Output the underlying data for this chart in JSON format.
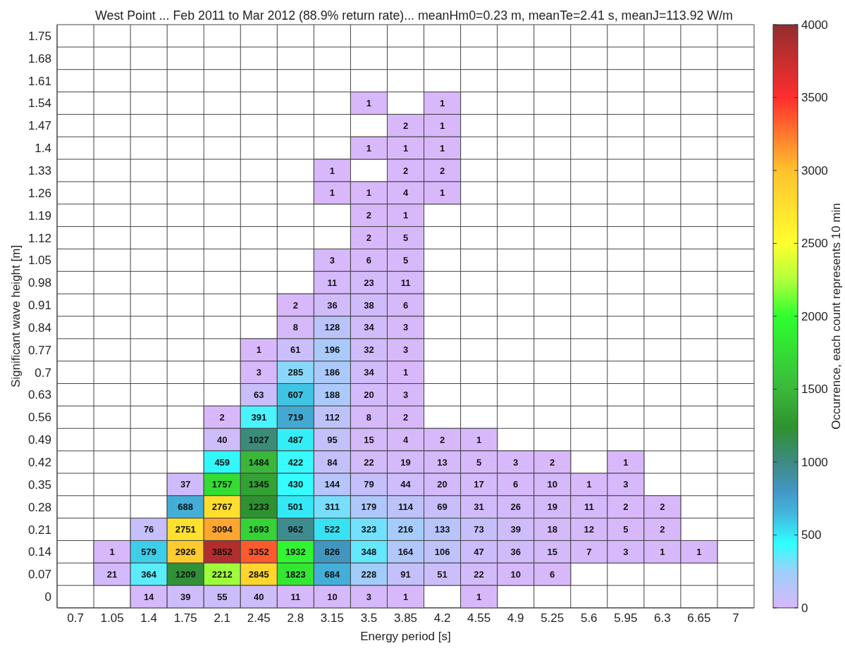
{
  "chart_data": {
    "type": "heatmap",
    "title": "West Point ... Feb 2011 to Mar 2012 (88.9% return rate)... meanHm0=0.23 m, meanTe=2.41 s, meanJ=113.92 W/m",
    "xlabel": "Energy period [s]",
    "ylabel": "Significant wave height [m]",
    "clabel": "Occurrence, each count represents 10 min",
    "categories": [
      "0.7",
      "1.05",
      "1.4",
      "1.75",
      "2.1",
      "2.45",
      "2.8",
      "3.15",
      "3.5",
      "3.85",
      "4.2",
      "4.55",
      "4.9",
      "5.25",
      "5.6",
      "5.95",
      "6.3",
      "6.65",
      "7"
    ],
    "y_categories": [
      "1.75",
      "1.68",
      "1.61",
      "1.54",
      "1.47",
      "1.4",
      "1.33",
      "1.26",
      "1.19",
      "1.12",
      "1.05",
      "0.98",
      "0.91",
      "0.84",
      "0.77",
      "0.7",
      "0.63",
      "0.56",
      "0.49",
      "0.42",
      "0.35",
      "0.28",
      "0.21",
      "0.14",
      "0.07",
      "0"
    ],
    "cells": [
      [
        null,
        null,
        null,
        null,
        null,
        null,
        null,
        null,
        null,
        null,
        null,
        null,
        null,
        null,
        null,
        null,
        null,
        null,
        null
      ],
      [
        null,
        null,
        null,
        null,
        null,
        null,
        null,
        null,
        null,
        null,
        null,
        null,
        null,
        null,
        null,
        null,
        null,
        null,
        null
      ],
      [
        null,
        null,
        null,
        null,
        null,
        null,
        null,
        null,
        null,
        null,
        null,
        null,
        null,
        null,
        null,
        null,
        null,
        null,
        null
      ],
      [
        null,
        null,
        null,
        null,
        null,
        null,
        null,
        null,
        1,
        null,
        1,
        null,
        null,
        null,
        null,
        null,
        null,
        null,
        null
      ],
      [
        null,
        null,
        null,
        null,
        null,
        null,
        null,
        null,
        null,
        2,
        1,
        null,
        null,
        null,
        null,
        null,
        null,
        null,
        null
      ],
      [
        null,
        null,
        null,
        null,
        null,
        null,
        null,
        null,
        1,
        1,
        1,
        null,
        null,
        null,
        null,
        null,
        null,
        null,
        null
      ],
      [
        null,
        null,
        null,
        null,
        null,
        null,
        null,
        1,
        null,
        2,
        2,
        null,
        null,
        null,
        null,
        null,
        null,
        null,
        null
      ],
      [
        null,
        null,
        null,
        null,
        null,
        null,
        null,
        1,
        1,
        4,
        1,
        null,
        null,
        null,
        null,
        null,
        null,
        null,
        null
      ],
      [
        null,
        null,
        null,
        null,
        null,
        null,
        null,
        null,
        2,
        1,
        null,
        null,
        null,
        null,
        null,
        null,
        null,
        null,
        null
      ],
      [
        null,
        null,
        null,
        null,
        null,
        null,
        null,
        null,
        2,
        5,
        null,
        null,
        null,
        null,
        null,
        null,
        null,
        null,
        null
      ],
      [
        null,
        null,
        null,
        null,
        null,
        null,
        null,
        3,
        6,
        5,
        null,
        null,
        null,
        null,
        null,
        null,
        null,
        null,
        null
      ],
      [
        null,
        null,
        null,
        null,
        null,
        null,
        null,
        11,
        23,
        11,
        null,
        null,
        null,
        null,
        null,
        null,
        null,
        null,
        null
      ],
      [
        null,
        null,
        null,
        null,
        null,
        null,
        2,
        36,
        38,
        6,
        null,
        null,
        null,
        null,
        null,
        null,
        null,
        null,
        null
      ],
      [
        null,
        null,
        null,
        null,
        null,
        null,
        8,
        128,
        34,
        3,
        null,
        null,
        null,
        null,
        null,
        null,
        null,
        null,
        null
      ],
      [
        null,
        null,
        null,
        null,
        null,
        1,
        61,
        196,
        32,
        3,
        null,
        null,
        null,
        null,
        null,
        null,
        null,
        null,
        null
      ],
      [
        null,
        null,
        null,
        null,
        null,
        3,
        285,
        186,
        34,
        1,
        null,
        null,
        null,
        null,
        null,
        null,
        null,
        null,
        null
      ],
      [
        null,
        null,
        null,
        null,
        null,
        63,
        607,
        188,
        20,
        3,
        null,
        null,
        null,
        null,
        null,
        null,
        null,
        null,
        null
      ],
      [
        null,
        null,
        null,
        null,
        2,
        391,
        719,
        112,
        8,
        2,
        null,
        null,
        null,
        null,
        null,
        null,
        null,
        null,
        null
      ],
      [
        null,
        null,
        null,
        null,
        40,
        1027,
        487,
        95,
        15,
        4,
        2,
        1,
        null,
        null,
        null,
        null,
        null,
        null,
        null
      ],
      [
        null,
        null,
        null,
        null,
        459,
        1484,
        422,
        84,
        22,
        19,
        13,
        5,
        3,
        2,
        null,
        1,
        null,
        null,
        null
      ],
      [
        null,
        null,
        null,
        37,
        1757,
        1345,
        430,
        144,
        79,
        44,
        20,
        17,
        6,
        10,
        1,
        3,
        null,
        null,
        null
      ],
      [
        null,
        null,
        null,
        688,
        2767,
        1233,
        501,
        311,
        179,
        114,
        69,
        31,
        26,
        19,
        11,
        2,
        2,
        null,
        null
      ],
      [
        null,
        null,
        76,
        2751,
        3094,
        1693,
        962,
        522,
        323,
        216,
        133,
        73,
        39,
        18,
        12,
        5,
        2,
        null,
        null
      ],
      [
        null,
        1,
        579,
        2926,
        3852,
        3352,
        1932,
        826,
        348,
        164,
        106,
        47,
        36,
        15,
        7,
        3,
        1,
        1,
        null
      ],
      [
        null,
        21,
        364,
        1209,
        2212,
        2845,
        1823,
        684,
        228,
        91,
        51,
        22,
        10,
        6,
        null,
        null,
        null,
        null,
        null
      ],
      [
        null,
        null,
        14,
        39,
        55,
        40,
        11,
        10,
        3,
        1,
        null,
        1,
        null,
        null,
        null,
        null,
        null,
        null,
        null
      ]
    ],
    "clim": [
      0,
      4000
    ],
    "cticks": [
      0,
      500,
      1000,
      1500,
      2000,
      2500,
      3000,
      3500,
      4000
    ],
    "data_labels": true,
    "grid": true
  }
}
